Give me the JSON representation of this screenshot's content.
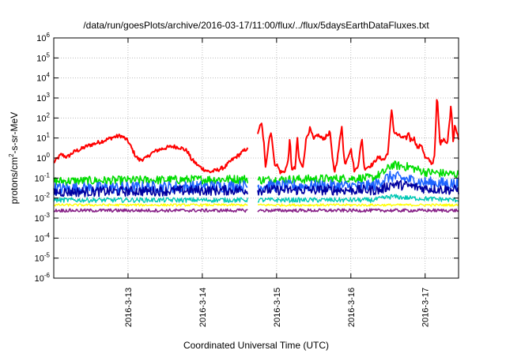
{
  "chart_data": {
    "type": "line",
    "title": "/data/run/goesPlots/archive/2016-03-17/11:00/flux/../flux/5daysEarthDataFluxes.txt",
    "xlabel": "Coordinated Universal Time (UTC)",
    "ylabel": {
      "base": "protons/cm",
      "sup": "2",
      "rest": "-s-sr-MeV"
    },
    "x_unit": "days since 2016-03-12 00:00 UTC",
    "xlim": [
      0.0,
      5.45
    ],
    "yscale": "log",
    "ylim_exp": [
      -6,
      6
    ],
    "grid": true,
    "x_ticks": [
      {
        "x": 1,
        "label": "2016-3-13"
      },
      {
        "x": 2,
        "label": "2016-3-14"
      },
      {
        "x": 3,
        "label": "2016-3-15"
      },
      {
        "x": 4,
        "label": "2016-3-16"
      },
      {
        "x": 5,
        "label": "2016-3-17"
      }
    ],
    "y_ticks": [
      {
        "exp": -6,
        "base": "10",
        "sup": "-6"
      },
      {
        "exp": -5,
        "base": "10",
        "sup": "-5"
      },
      {
        "exp": -4,
        "base": "10",
        "sup": "-4"
      },
      {
        "exp": -3,
        "base": "10",
        "sup": "-3"
      },
      {
        "exp": -2,
        "base": "10",
        "sup": "-2"
      },
      {
        "exp": -1,
        "base": "10",
        "sup": "-1"
      },
      {
        "exp": 0,
        "base": "10",
        "sup": "0"
      },
      {
        "exp": 1,
        "base": "10",
        "sup": "1"
      },
      {
        "exp": 2,
        "base": "10",
        "sup": "2"
      },
      {
        "exp": 3,
        "base": "10",
        "sup": "3"
      },
      {
        "exp": 4,
        "base": "10",
        "sup": "4"
      },
      {
        "exp": 5,
        "base": "10",
        "sup": "5"
      },
      {
        "exp": 6,
        "base": "10",
        "sup": "6"
      }
    ],
    "gap": [
      2.62,
      2.74
    ],
    "series": [
      {
        "color": "#ff0000",
        "width": 2.0,
        "noise": 0.1,
        "points": [
          [
            0,
            0.6
          ],
          [
            0.1,
            1.5
          ],
          [
            0.18,
            1.1
          ],
          [
            0.26,
            1.9
          ],
          [
            0.3,
            2.3
          ],
          [
            0.35,
            2.6
          ],
          [
            0.45,
            4
          ],
          [
            0.6,
            6
          ],
          [
            0.7,
            8
          ],
          [
            0.8,
            11
          ],
          [
            0.9,
            13
          ],
          [
            0.95,
            10
          ],
          [
            1.0,
            7
          ],
          [
            1.05,
            3
          ],
          [
            1.1,
            1.3
          ],
          [
            1.15,
            0.8
          ],
          [
            1.25,
            1.0
          ],
          [
            1.3,
            1.6
          ],
          [
            1.4,
            2.5
          ],
          [
            1.5,
            3.2
          ],
          [
            1.6,
            3.8
          ],
          [
            1.7,
            3.4
          ],
          [
            1.8,
            2.2
          ],
          [
            1.85,
            0.9
          ],
          [
            1.95,
            0.4
          ],
          [
            2.0,
            0.3
          ],
          [
            2.1,
            0.2
          ],
          [
            2.2,
            0.25
          ],
          [
            2.3,
            0.35
          ],
          [
            2.4,
            0.8
          ],
          [
            2.5,
            1.5
          ],
          [
            2.6,
            3.0
          ],
          [
            2.62,
            2.5
          ],
          [
            2.74,
            10
          ],
          [
            2.76,
            30
          ],
          [
            2.8,
            50
          ],
          [
            2.83,
            5
          ],
          [
            2.85,
            0.3
          ],
          [
            2.9,
            10
          ],
          [
            2.93,
            20
          ],
          [
            2.97,
            0.5
          ],
          [
            3.0,
            0.5
          ],
          [
            3.05,
            0.2
          ],
          [
            3.1,
            0.2
          ],
          [
            3.15,
            0.5
          ],
          [
            3.18,
            10
          ],
          [
            3.2,
            0.3
          ],
          [
            3.25,
            0.3
          ],
          [
            3.28,
            10
          ],
          [
            3.3,
            1.0
          ],
          [
            3.35,
            0.3
          ],
          [
            3.4,
            10
          ],
          [
            3.45,
            30
          ],
          [
            3.5,
            8
          ],
          [
            3.55,
            15
          ],
          [
            3.6,
            10
          ],
          [
            3.65,
            10
          ],
          [
            3.72,
            20
          ],
          [
            3.75,
            1
          ],
          [
            3.78,
            0.2
          ],
          [
            3.82,
            1
          ],
          [
            3.88,
            50
          ],
          [
            3.9,
            2
          ],
          [
            3.92,
            0.5
          ],
          [
            4.0,
            3
          ],
          [
            4.05,
            0.2
          ],
          [
            4.1,
            0.5
          ],
          [
            4.15,
            10
          ],
          [
            4.18,
            0.3
          ],
          [
            4.25,
            0.4
          ],
          [
            4.3,
            0.5
          ],
          [
            4.35,
            1
          ],
          [
            4.4,
            1
          ],
          [
            4.45,
            0.8
          ],
          [
            4.5,
            2
          ],
          [
            4.55,
            300
          ],
          [
            4.58,
            20
          ],
          [
            4.62,
            15
          ],
          [
            4.7,
            10
          ],
          [
            4.75,
            10
          ],
          [
            4.78,
            20
          ],
          [
            4.8,
            8
          ],
          [
            4.85,
            10
          ],
          [
            4.9,
            3
          ],
          [
            4.95,
            5
          ],
          [
            5.0,
            1
          ],
          [
            5.05,
            0.8
          ],
          [
            5.1,
            0.5
          ],
          [
            5.13,
            2
          ],
          [
            5.16,
            1500
          ],
          [
            5.2,
            5
          ],
          [
            5.25,
            10
          ],
          [
            5.3,
            5
          ],
          [
            5.35,
            500
          ],
          [
            5.38,
            5
          ],
          [
            5.4,
            60
          ],
          [
            5.45,
            8
          ]
        ]
      },
      {
        "color": "#00dd00",
        "width": 1.6,
        "noise": 0.22,
        "points": [
          [
            0,
            0.07
          ],
          [
            2.6,
            0.09
          ],
          [
            2.74,
            0.08
          ],
          [
            4.3,
            0.1
          ],
          [
            4.45,
            0.2
          ],
          [
            4.55,
            0.45
          ],
          [
            4.8,
            0.35
          ],
          [
            5.0,
            0.2
          ],
          [
            5.45,
            0.15
          ]
        ]
      },
      {
        "color": "#1e64ff",
        "width": 1.6,
        "noise": 0.3,
        "points": [
          [
            0,
            0.03
          ],
          [
            2.6,
            0.04
          ],
          [
            2.74,
            0.04
          ],
          [
            4.3,
            0.04
          ],
          [
            4.45,
            0.09
          ],
          [
            4.55,
            0.12
          ],
          [
            4.8,
            0.08
          ],
          [
            5.0,
            0.06
          ],
          [
            5.45,
            0.05
          ]
        ]
      },
      {
        "color": "#0000a0",
        "width": 1.6,
        "noise": 0.25,
        "points": [
          [
            0,
            0.02
          ],
          [
            2.6,
            0.025
          ],
          [
            2.74,
            0.025
          ],
          [
            4.4,
            0.025
          ],
          [
            4.55,
            0.05
          ],
          [
            4.8,
            0.04
          ],
          [
            5.0,
            0.03
          ],
          [
            5.45,
            0.025
          ]
        ]
      },
      {
        "color": "#00c8b4",
        "width": 1.4,
        "noise": 0.12,
        "points": [
          [
            0,
            0.008
          ],
          [
            4.3,
            0.008
          ],
          [
            4.55,
            0.012
          ],
          [
            4.8,
            0.01
          ],
          [
            5.45,
            0.008
          ]
        ]
      },
      {
        "color": "#ffff00",
        "width": 1.4,
        "noise": 0.06,
        "points": [
          [
            0,
            0.0045
          ],
          [
            5.45,
            0.0045
          ]
        ]
      },
      {
        "color": "#882288",
        "width": 1.6,
        "noise": 0.08,
        "points": [
          [
            0,
            0.0024
          ],
          [
            5.45,
            0.0024
          ]
        ]
      }
    ]
  }
}
